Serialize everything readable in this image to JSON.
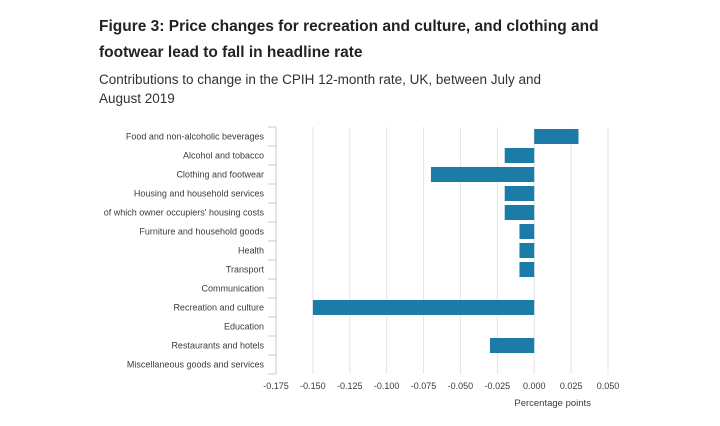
{
  "header": {
    "title": "Figure 3: Price changes for recreation and culture, and clothing and footwear lead to fall in headline rate",
    "subtitle": "Contributions to change in the CPIH 12-month rate, UK, between July and August 2019"
  },
  "colors": {
    "bar": "#1c7ca7",
    "grid": "#e4e4e4",
    "axis": "#c9c9c9"
  },
  "chart_data": {
    "type": "bar",
    "orientation": "horizontal",
    "title": "Figure 3: Price changes for recreation and culture, and clothing and footwear lead to fall in headline rate",
    "subtitle": "Contributions to change in the CPIH 12-month rate, UK, between July and August 2019",
    "xlabel": "Percentage points",
    "ylabel": "",
    "xlim": [
      -0.175,
      0.05
    ],
    "xticks": [
      -0.175,
      -0.15,
      -0.125,
      -0.1,
      -0.075,
      -0.05,
      -0.025,
      0,
      0.025,
      0.05
    ],
    "xtick_labels": [
      "-0.175",
      "-0.150",
      "-0.125",
      "-0.100",
      "-0.075",
      "-0.050",
      "-0.025",
      "0.000",
      "0.025",
      "0.050"
    ],
    "grid": "vertical",
    "categories": [
      "Food and non-alcoholic beverages",
      "Alcohol and tobacco",
      "Clothing and footwear",
      "Housing and household services",
      "of which owner occupiers' housing costs",
      "Furniture and household goods",
      "Health",
      "Transport",
      "Communication",
      "Recreation and culture",
      "Education",
      "Restaurants and hotels",
      "Miscellaneous goods and services"
    ],
    "values": [
      0.03,
      -0.02,
      -0.07,
      -0.02,
      -0.02,
      -0.01,
      -0.01,
      -0.01,
      0,
      -0.15,
      0,
      -0.03,
      0
    ]
  }
}
